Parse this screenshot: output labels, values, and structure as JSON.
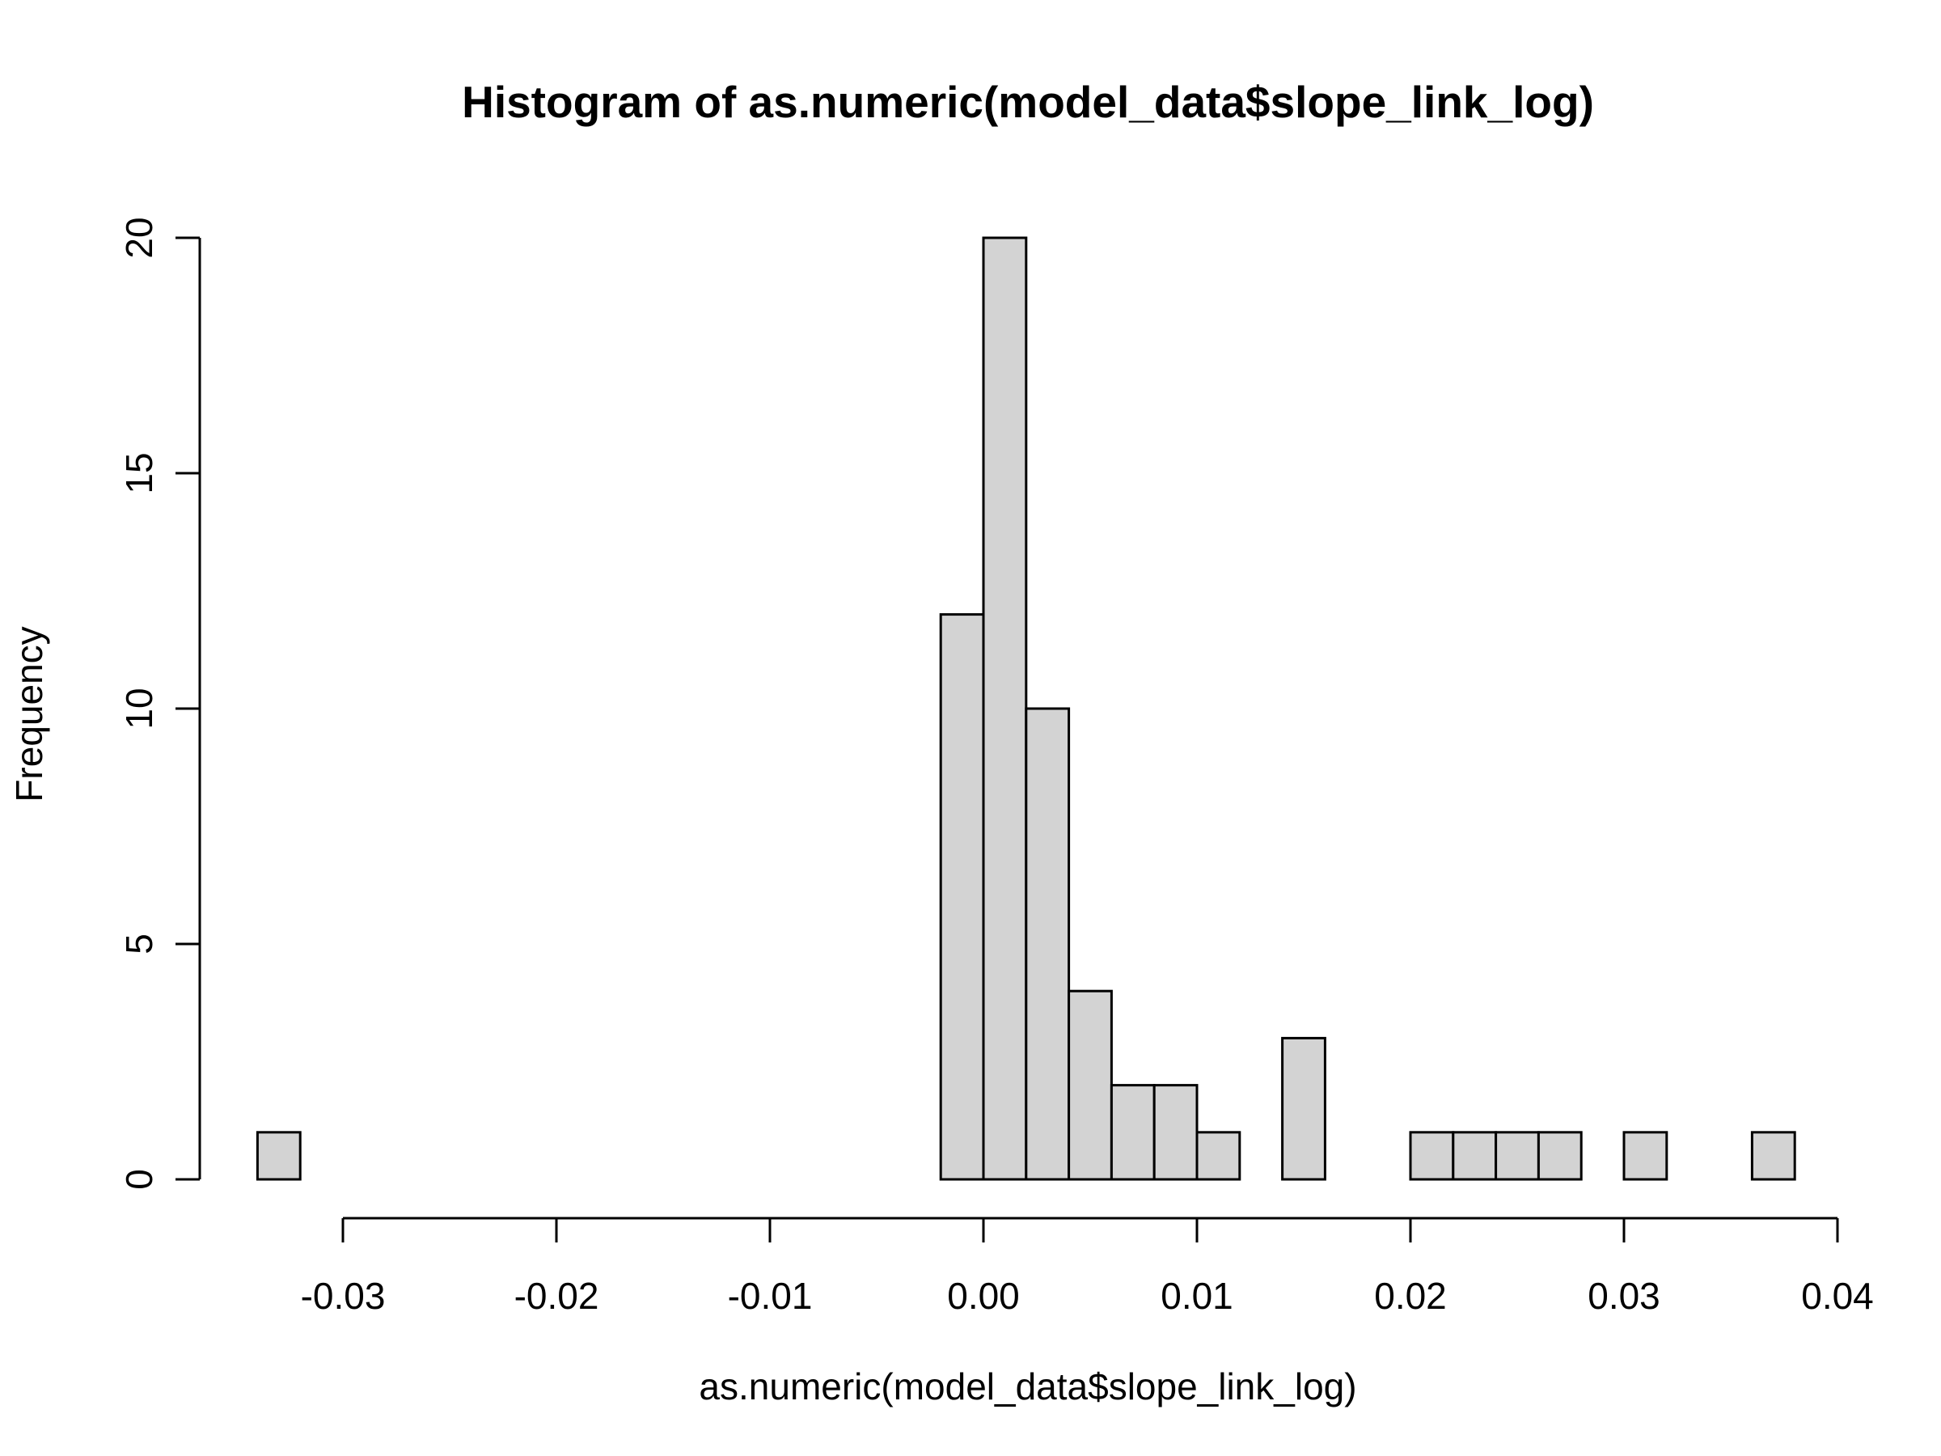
{
  "chart_data": {
    "type": "bar",
    "title": "Histogram of as.numeric(model_data$slope_link_log)",
    "xlabel": "as.numeric(model_data$slope_link_log)",
    "ylabel": "Frequency",
    "xlim": [
      -0.034,
      0.038
    ],
    "ylim": [
      0,
      20
    ],
    "bin_width": 0.002,
    "x_ticks": [
      {
        "value": -0.03,
        "label": "-0.03"
      },
      {
        "value": -0.02,
        "label": "-0.02"
      },
      {
        "value": -0.01,
        "label": "-0.01"
      },
      {
        "value": 0.0,
        "label": "0.00"
      },
      {
        "value": 0.01,
        "label": "0.01"
      },
      {
        "value": 0.02,
        "label": "0.02"
      },
      {
        "value": 0.03,
        "label": "0.03"
      },
      {
        "value": 0.04,
        "label": "0.04"
      }
    ],
    "y_ticks": [
      {
        "value": 0,
        "label": "0"
      },
      {
        "value": 5,
        "label": "5"
      },
      {
        "value": 10,
        "label": "10"
      },
      {
        "value": 15,
        "label": "15"
      },
      {
        "value": 20,
        "label": "20"
      }
    ],
    "bins": [
      {
        "start": -0.034,
        "end": -0.032,
        "count": 1
      },
      {
        "start": -0.032,
        "end": -0.03,
        "count": 0
      },
      {
        "start": -0.03,
        "end": -0.028,
        "count": 0
      },
      {
        "start": -0.028,
        "end": -0.026,
        "count": 0
      },
      {
        "start": -0.026,
        "end": -0.024,
        "count": 0
      },
      {
        "start": -0.024,
        "end": -0.022,
        "count": 0
      },
      {
        "start": -0.022,
        "end": -0.02,
        "count": 0
      },
      {
        "start": -0.02,
        "end": -0.018,
        "count": 0
      },
      {
        "start": -0.018,
        "end": -0.016,
        "count": 0
      },
      {
        "start": -0.016,
        "end": -0.014,
        "count": 0
      },
      {
        "start": -0.014,
        "end": -0.012,
        "count": 0
      },
      {
        "start": -0.012,
        "end": -0.01,
        "count": 0
      },
      {
        "start": -0.01,
        "end": -0.008,
        "count": 0
      },
      {
        "start": -0.008,
        "end": -0.006,
        "count": 0
      },
      {
        "start": -0.006,
        "end": -0.004,
        "count": 0
      },
      {
        "start": -0.004,
        "end": -0.002,
        "count": 0
      },
      {
        "start": -0.002,
        "end": 0.0,
        "count": 12
      },
      {
        "start": 0.0,
        "end": 0.002,
        "count": 20
      },
      {
        "start": 0.002,
        "end": 0.004,
        "count": 10
      },
      {
        "start": 0.004,
        "end": 0.006,
        "count": 4
      },
      {
        "start": 0.006,
        "end": 0.008,
        "count": 2
      },
      {
        "start": 0.008,
        "end": 0.01,
        "count": 2
      },
      {
        "start": 0.01,
        "end": 0.012,
        "count": 1
      },
      {
        "start": 0.012,
        "end": 0.014,
        "count": 0
      },
      {
        "start": 0.014,
        "end": 0.016,
        "count": 3
      },
      {
        "start": 0.016,
        "end": 0.018,
        "count": 0
      },
      {
        "start": 0.018,
        "end": 0.02,
        "count": 0
      },
      {
        "start": 0.02,
        "end": 0.022,
        "count": 1
      },
      {
        "start": 0.022,
        "end": 0.024,
        "count": 1
      },
      {
        "start": 0.024,
        "end": 0.026,
        "count": 1
      },
      {
        "start": 0.026,
        "end": 0.028,
        "count": 1
      },
      {
        "start": 0.028,
        "end": 0.03,
        "count": 0
      },
      {
        "start": 0.03,
        "end": 0.032,
        "count": 1
      },
      {
        "start": 0.032,
        "end": 0.034,
        "count": 0
      },
      {
        "start": 0.034,
        "end": 0.036,
        "count": 0
      },
      {
        "start": 0.036,
        "end": 0.038,
        "count": 1
      }
    ],
    "colors": {
      "bar_fill": "#d3d3d3",
      "bar_stroke": "#000000"
    }
  }
}
